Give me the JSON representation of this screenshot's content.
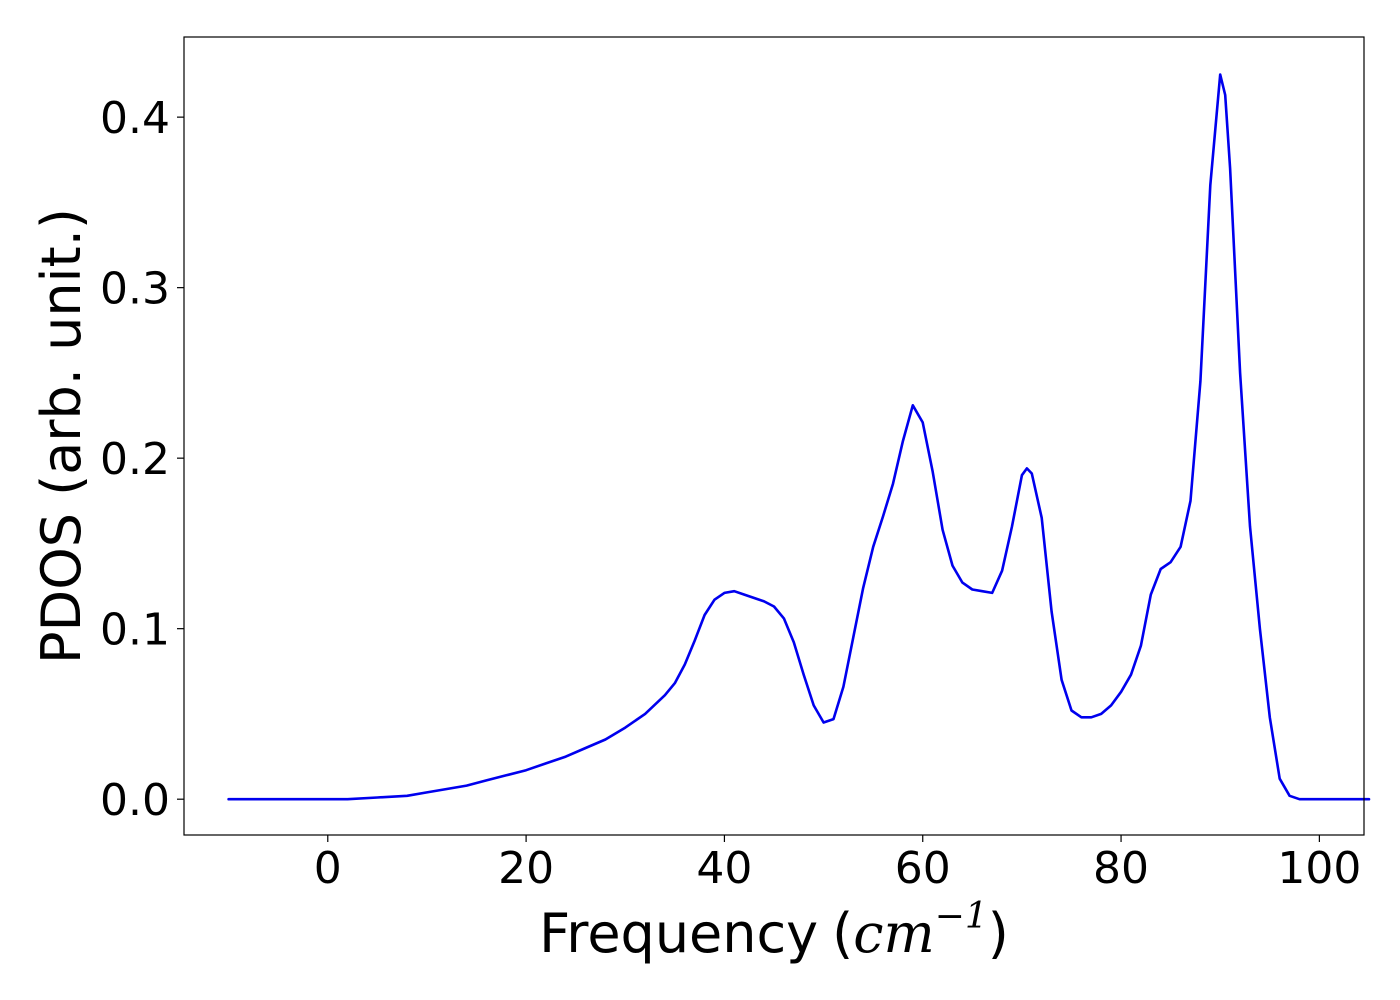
{
  "chart_data": {
    "type": "line",
    "title": "",
    "xlabel": "Frequency",
    "xlabel_paren_open": "(",
    "xlabel_unit_base": "cm",
    "xlabel_unit_exp": "−1",
    "xlabel_paren_close": ")",
    "ylabel": "PDOS (arb. unit.)",
    "xlim": [
      -14.5,
      104.5
    ],
    "ylim": [
      -0.021,
      0.447
    ],
    "xticks": [
      0,
      20,
      40,
      60,
      80,
      100
    ],
    "xtick_labels": [
      "0",
      "20",
      "40",
      "60",
      "80",
      "100"
    ],
    "yticks": [
      0.0,
      0.1,
      0.2,
      0.3,
      0.4
    ],
    "ytick_labels": [
      "0.0",
      "0.1",
      "0.2",
      "0.3",
      "0.4"
    ],
    "grid": false,
    "legend": "none",
    "series": [
      {
        "color": "#0000ee",
        "x": [
          -10,
          -5,
          0,
          2,
          5,
          8,
          10,
          12,
          14,
          16,
          18,
          20,
          22,
          24,
          26,
          28,
          30,
          32,
          34,
          35,
          36,
          37,
          38,
          39,
          40,
          41,
          42,
          43,
          44,
          45,
          46,
          47,
          48,
          49,
          50,
          51,
          52,
          53,
          54,
          55,
          56,
          57,
          58,
          59,
          60,
          61,
          62,
          63,
          64,
          65,
          66,
          67,
          68,
          69,
          70,
          70.5,
          71,
          72,
          73,
          74,
          75,
          76,
          77,
          78,
          79,
          80,
          81,
          82,
          83,
          84,
          85,
          86,
          87,
          88,
          89,
          90,
          90.5,
          91,
          92,
          93,
          94,
          95,
          96,
          97,
          98,
          100,
          105
        ],
        "y": [
          0.0,
          0.0,
          0.0,
          0.0,
          0.001,
          0.002,
          0.004,
          0.006,
          0.008,
          0.011,
          0.014,
          0.017,
          0.021,
          0.025,
          0.03,
          0.035,
          0.042,
          0.05,
          0.061,
          0.068,
          0.079,
          0.093,
          0.108,
          0.117,
          0.121,
          0.122,
          0.12,
          0.118,
          0.116,
          0.113,
          0.106,
          0.092,
          0.073,
          0.055,
          0.045,
          0.047,
          0.066,
          0.095,
          0.124,
          0.148,
          0.166,
          0.185,
          0.21,
          0.231,
          0.221,
          0.192,
          0.158,
          0.137,
          0.127,
          0.123,
          0.122,
          0.121,
          0.134,
          0.16,
          0.19,
          0.194,
          0.191,
          0.165,
          0.11,
          0.07,
          0.052,
          0.048,
          0.048,
          0.05,
          0.055,
          0.063,
          0.073,
          0.09,
          0.12,
          0.135,
          0.139,
          0.148,
          0.175,
          0.245,
          0.36,
          0.425,
          0.413,
          0.37,
          0.25,
          0.16,
          0.1,
          0.048,
          0.012,
          0.002,
          0.0,
          0.0,
          0.0
        ]
      }
    ]
  },
  "colors": {
    "line": "#0000ee",
    "axes": "#000000",
    "background": "#ffffff"
  }
}
